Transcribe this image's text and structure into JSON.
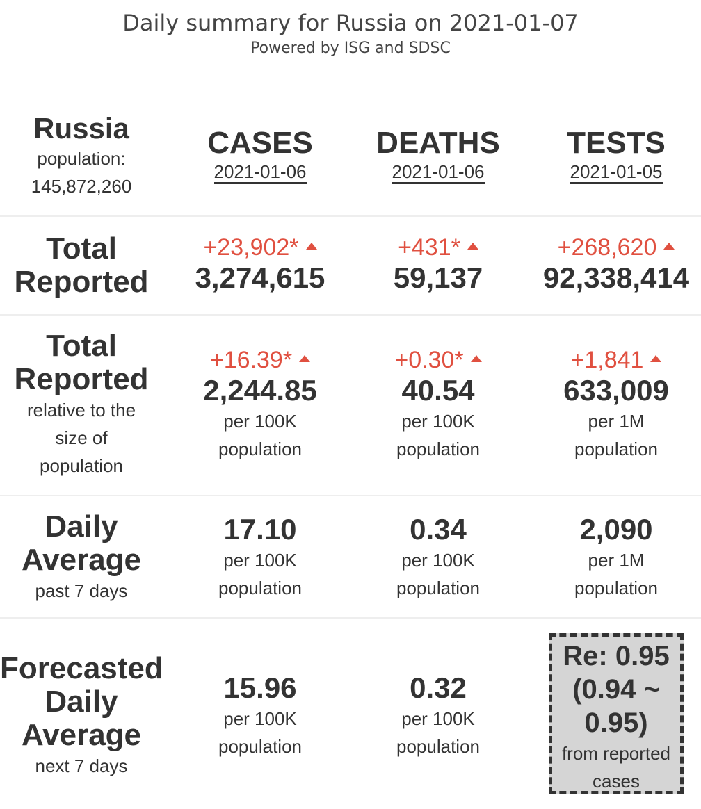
{
  "header": {
    "title": "Daily summary for Russia on 2021-01-07",
    "subtitle": "Powered by ISG and SDSC"
  },
  "region": {
    "name": "Russia",
    "population_label": "population:",
    "population": "145,872,260"
  },
  "columns": [
    {
      "name": "CASES",
      "date": "2021-01-06"
    },
    {
      "name": "DEATHS",
      "date": "2021-01-06"
    },
    {
      "name": "TESTS",
      "date": "2021-01-05"
    }
  ],
  "rows": {
    "total_reported": {
      "label1": "Total",
      "label2": "Reported",
      "cells": [
        {
          "delta": "+23,902*",
          "value": "3,274,615"
        },
        {
          "delta": "+431*",
          "value": "59,137"
        },
        {
          "delta": "+268,620",
          "value": "92,338,414"
        }
      ]
    },
    "relative": {
      "label1": "Total",
      "label2": "Reported",
      "desc1": "relative to the",
      "desc2": "size of",
      "desc3": "population",
      "cells": [
        {
          "delta": "+16.39*",
          "value": "2,244.85",
          "unit1": "per 100K",
          "unit2": "population"
        },
        {
          "delta": "+0.30*",
          "value": "40.54",
          "unit1": "per 100K",
          "unit2": "population"
        },
        {
          "delta": "+1,841",
          "value": "633,009",
          "unit1": "per 1M",
          "unit2": "population"
        }
      ]
    },
    "daily_average": {
      "label1": "Daily",
      "label2": "Average",
      "desc": "past 7 days",
      "cells": [
        {
          "value": "17.10",
          "unit1": "per 100K",
          "unit2": "population"
        },
        {
          "value": "0.34",
          "unit1": "per 100K",
          "unit2": "population"
        },
        {
          "value": "2,090",
          "unit1": "per 1M",
          "unit2": "population"
        }
      ]
    },
    "forecast": {
      "label1": "Forecasted",
      "label2": "Daily",
      "label3": "Average",
      "desc": "next 7 days",
      "cells": [
        {
          "value": "15.96",
          "unit1": "per 100K",
          "unit2": "population"
        },
        {
          "value": "0.32",
          "unit1": "per 100K",
          "unit2": "population"
        }
      ],
      "re": {
        "line1": "Re: 0.95",
        "line2": "(0.94 ~",
        "line3": "0.95)",
        "note1": "from reported",
        "note2": "cases"
      }
    }
  },
  "colors": {
    "increase": "#e05040",
    "text": "#333333",
    "re_box_bg": "#d5d5d5"
  }
}
